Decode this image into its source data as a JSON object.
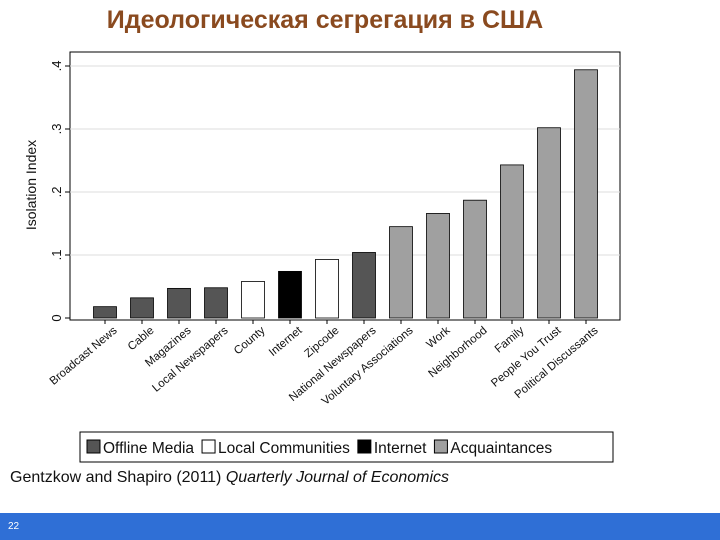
{
  "slide": {
    "title": "Идеологическая сегрегация в США",
    "citation_authors": "Gentzkow and Shapiro (2011) ",
    "citation_journal": "Quarterly Journal of Economics",
    "page_number": "22"
  },
  "colors": {
    "Offline Media": "#555555",
    "Local Communities": "#ffffff",
    "Internet": "#000000",
    "Acquaintances": "#a0a0a0",
    "title": "#8a4a1f",
    "footer": "#2f6fd6"
  },
  "chart_data": {
    "type": "bar",
    "title": "",
    "xlabel": "",
    "ylabel": "Isolation Index",
    "ylim": [
      0,
      0.4
    ],
    "yticks": [
      0,
      0.1,
      0.2,
      0.3,
      0.4
    ],
    "ytick_labels": [
      "0",
      ".1",
      ".2",
      ".3",
      ".4"
    ],
    "grid": true,
    "legend_position": "bottom",
    "categories": [
      "Broadcast News",
      "Cable",
      "Magazines",
      "Local Newspapers",
      "County",
      "Internet",
      "Zipcode",
      "National Newspapers",
      "Voluntary Associations",
      "Work",
      "Neighborhood",
      "Family",
      "People You Trust",
      "Political Discussants"
    ],
    "values": [
      0.018,
      0.032,
      0.047,
      0.048,
      0.058,
      0.074,
      0.093,
      0.104,
      0.145,
      0.166,
      0.187,
      0.243,
      0.302,
      0.394
    ],
    "groups": [
      "Offline Media",
      "Offline Media",
      "Offline Media",
      "Offline Media",
      "Local Communities",
      "Internet",
      "Local Communities",
      "Offline Media",
      "Acquaintances",
      "Acquaintances",
      "Acquaintances",
      "Acquaintances",
      "Acquaintances",
      "Acquaintances"
    ],
    "legend": [
      "Offline Media",
      "Local Communities",
      "Internet",
      "Acquaintances"
    ]
  }
}
